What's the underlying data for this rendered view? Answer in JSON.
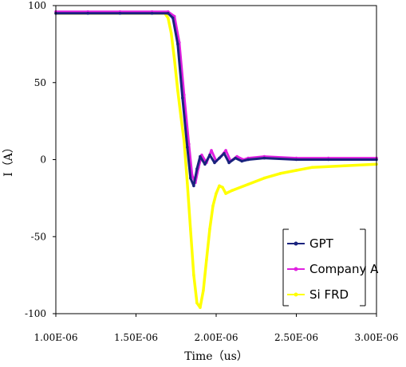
{
  "chart_data": {
    "type": "line",
    "title": "",
    "xlabel": "Time（us）",
    "ylabel": "I（A）",
    "xlim": [
      1e-06,
      3e-06
    ],
    "ylim": [
      -100,
      100
    ],
    "x_ticks": [
      "1.00E-06",
      "1.50E-06",
      "2.00E-06",
      "2.50E-06",
      "3.00E-06"
    ],
    "y_ticks": [
      "100",
      "50",
      "0",
      "-50",
      "-100"
    ],
    "grid": false,
    "legend_position": "bottom-right",
    "series": [
      {
        "name": "GPT",
        "color": "#1a237e",
        "x": [
          1e-06,
          1.2e-06,
          1.4e-06,
          1.6e-06,
          1.7e-06,
          1.73e-06,
          1.76e-06,
          1.79e-06,
          1.82e-06,
          1.84e-06,
          1.86e-06,
          1.88e-06,
          1.9e-06,
          1.93e-06,
          1.96e-06,
          1.99e-06,
          2.02e-06,
          2.05e-06,
          2.08e-06,
          2.12e-06,
          2.16e-06,
          2.2e-06,
          2.3e-06,
          2.5e-06,
          2.7e-06,
          3e-06
        ],
        "y": [
          95,
          95,
          95,
          95,
          95,
          92,
          75,
          40,
          8,
          -12,
          -17,
          -6,
          2,
          -3,
          3,
          -2,
          1,
          4,
          -2,
          1,
          -1,
          0,
          1,
          0,
          0,
          0
        ]
      },
      {
        "name": "Company A",
        "color": "#e020e0",
        "x": [
          1e-06,
          1.2e-06,
          1.4e-06,
          1.6e-06,
          1.7e-06,
          1.74e-06,
          1.77e-06,
          1.8e-06,
          1.83e-06,
          1.85e-06,
          1.87e-06,
          1.89e-06,
          1.91e-06,
          1.94e-06,
          1.97e-06,
          2e-06,
          2.03e-06,
          2.06e-06,
          2.09e-06,
          2.13e-06,
          2.17e-06,
          2.2e-06,
          2.3e-06,
          2.5e-06,
          2.7e-06,
          3e-06
        ],
        "y": [
          96,
          96,
          96,
          96,
          96,
          93,
          76,
          42,
          10,
          -10,
          -15,
          -5,
          3,
          -2,
          6,
          -1,
          2,
          6,
          -1,
          2,
          0,
          1,
          2,
          1,
          1,
          1
        ]
      },
      {
        "name": "Si FRD",
        "color": "#ffff00",
        "x": [
          1e-06,
          1.2e-06,
          1.4e-06,
          1.6e-06,
          1.68e-06,
          1.7e-06,
          1.72e-06,
          1.74e-06,
          1.76e-06,
          1.78e-06,
          1.8e-06,
          1.82e-06,
          1.84e-06,
          1.86e-06,
          1.88e-06,
          1.9e-06,
          1.92e-06,
          1.94e-06,
          1.96e-06,
          1.98e-06,
          2e-06,
          2.02e-06,
          2.04e-06,
          2.06e-06,
          2.1e-06,
          2.2e-06,
          2.3e-06,
          2.4e-06,
          2.5e-06,
          2.6e-06,
          2.8e-06,
          3e-06
        ],
        "y": [
          95,
          95,
          95,
          95,
          95,
          92,
          82,
          65,
          45,
          28,
          12,
          -15,
          -45,
          -75,
          -93,
          -96,
          -85,
          -65,
          -45,
          -30,
          -22,
          -17,
          -18,
          -22,
          -20,
          -16,
          -12,
          -9,
          -7,
          -5,
          -4,
          -3
        ]
      }
    ]
  }
}
